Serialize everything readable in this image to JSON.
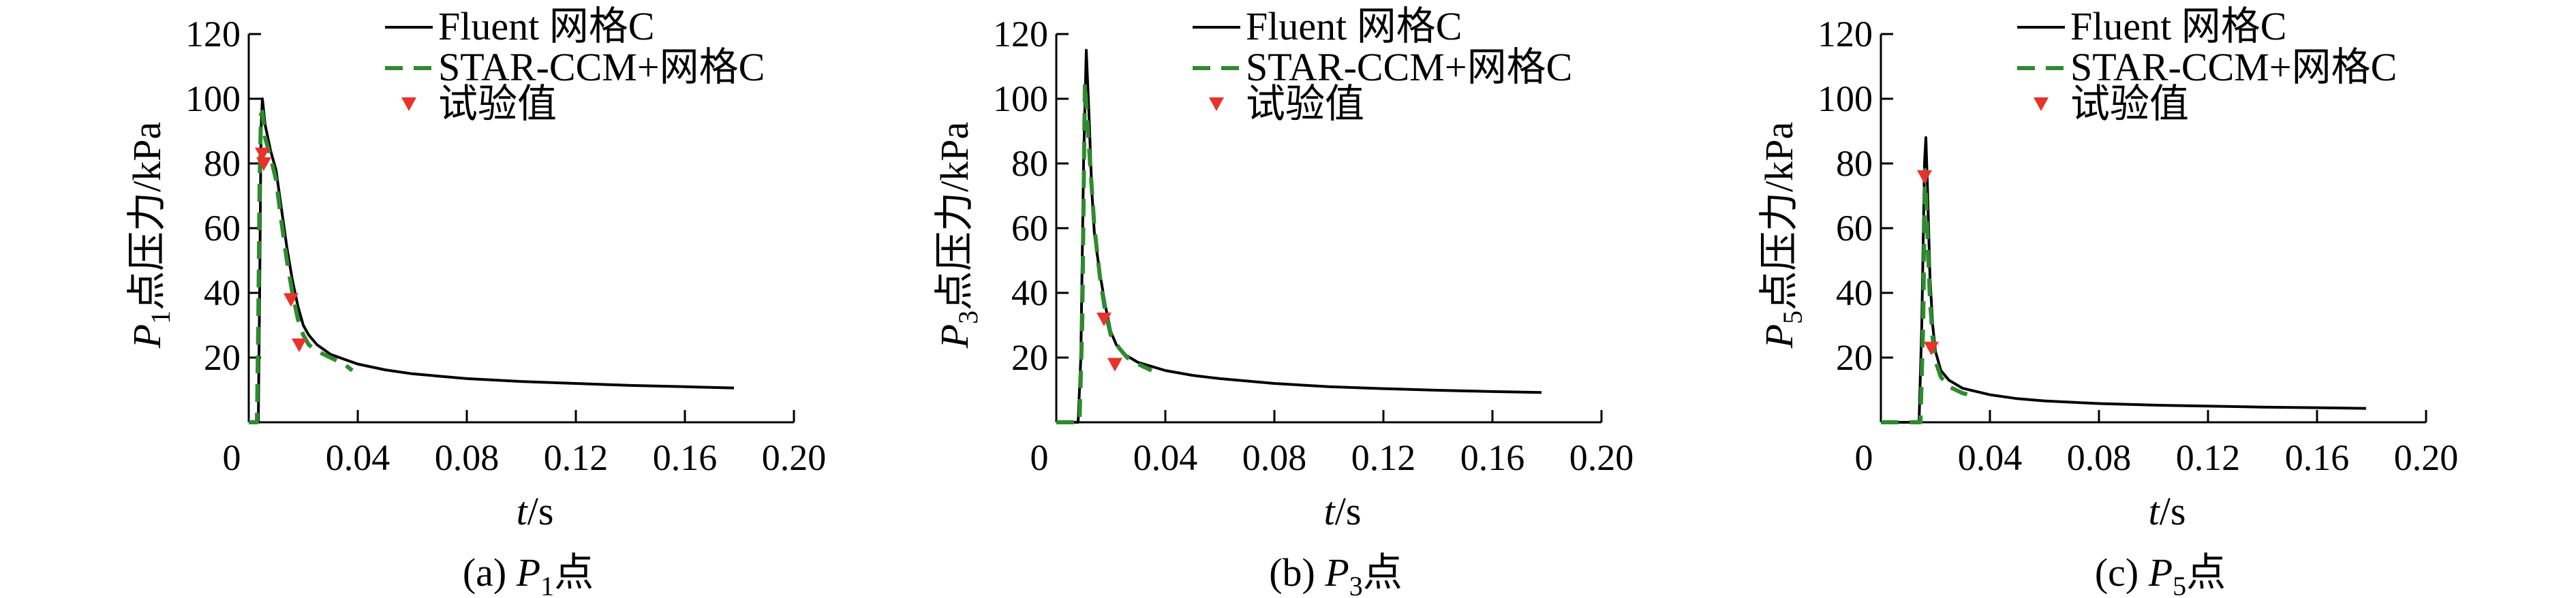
{
  "chart_data": [
    {
      "type": "line",
      "panel": "a",
      "caption_prefix": "(a) ",
      "caption_var": "P",
      "caption_sub": "1",
      "caption_suffix": "点",
      "ylabel_var": "P",
      "ylabel_sub": "1",
      "ylabel_text": "点压力/kPa",
      "xlabel_var": "t",
      "xlabel_text": "/s",
      "xlim": [
        0,
        0.2
      ],
      "ylim": [
        0,
        120
      ],
      "xticks": [
        0,
        0.04,
        0.08,
        0.12,
        0.16,
        0.2
      ],
      "xtick_labels": [
        "0",
        "0.04",
        "0.08",
        "0.12",
        "0.16",
        "0.20"
      ],
      "yticks": [
        20,
        40,
        60,
        80,
        100,
        120
      ],
      "ytick_labels": [
        "20",
        "40",
        "60",
        "80",
        "100",
        "120"
      ],
      "legend": [
        "Fluent 网格C",
        "STAR-CCM+网格C",
        "试验值"
      ],
      "series": [
        {
          "name": "Fluent 网格C",
          "style": "solid",
          "color": "#000000",
          "x": [
            0.0,
            0.002,
            0.0035,
            0.004,
            0.0045,
            0.005,
            0.006,
            0.008,
            0.01,
            0.012,
            0.014,
            0.016,
            0.018,
            0.02,
            0.022,
            0.025,
            0.03,
            0.04,
            0.05,
            0.06,
            0.08,
            0.1,
            0.12,
            0.14,
            0.16,
            0.178
          ],
          "y": [
            0,
            0,
            0,
            40,
            90,
            100,
            92,
            84,
            78,
            66,
            54,
            44,
            36,
            30,
            27,
            24,
            21,
            18,
            16.2,
            15,
            13.5,
            12.6,
            12,
            11.4,
            11,
            10.6
          ]
        },
        {
          "name": "STAR-CCM+网格C",
          "style": "dashed",
          "color": "#2e8b2e",
          "x": [
            0.0,
            0.0015,
            0.003,
            0.0035,
            0.004,
            0.0045,
            0.005,
            0.006,
            0.008,
            0.01,
            0.012,
            0.014,
            0.016,
            0.018,
            0.02,
            0.022,
            0.025,
            0.03,
            0.035,
            0.038
          ],
          "y": [
            0,
            0,
            0,
            30,
            75,
            95,
            96,
            88,
            82,
            75,
            62,
            50,
            40,
            32,
            27,
            24,
            22,
            20,
            18,
            16
          ]
        }
      ],
      "experiment": {
        "name": "试验值",
        "color": "#e8322b",
        "x": [
          0.005,
          0.0055,
          0.0155,
          0.0185
        ],
        "y": [
          83,
          80,
          38,
          24
        ]
      }
    },
    {
      "type": "line",
      "panel": "b",
      "caption_prefix": "(b) ",
      "caption_var": "P",
      "caption_sub": "3",
      "caption_suffix": "点",
      "ylabel_var": "P",
      "ylabel_sub": "3",
      "ylabel_text": "点压力/kPa",
      "xlabel_var": "t",
      "xlabel_text": "/s",
      "xlim": [
        0,
        0.2
      ],
      "ylim": [
        0,
        120
      ],
      "xticks": [
        0,
        0.04,
        0.08,
        0.12,
        0.16,
        0.2
      ],
      "xtick_labels": [
        "0",
        "0.04",
        "0.08",
        "0.12",
        "0.16",
        "0.20"
      ],
      "yticks": [
        20,
        40,
        60,
        80,
        100,
        120
      ],
      "ytick_labels": [
        "20",
        "40",
        "60",
        "80",
        "100",
        "120"
      ],
      "legend": [
        "Fluent 网格C",
        "STAR-CCM+网格C",
        "试验值"
      ],
      "series": [
        {
          "name": "Fluent 网格C",
          "style": "solid",
          "color": "#000000",
          "x": [
            0.0,
            0.006,
            0.008,
            0.009,
            0.01,
            0.011,
            0.012,
            0.013,
            0.014,
            0.016,
            0.018,
            0.02,
            0.022,
            0.025,
            0.03,
            0.04,
            0.05,
            0.06,
            0.08,
            0.1,
            0.12,
            0.14,
            0.16,
            0.178
          ],
          "y": [
            0,
            0,
            0,
            20,
            80,
            115,
            95,
            72,
            58,
            46,
            36,
            28,
            24,
            21,
            18.5,
            16,
            14.5,
            13.5,
            12,
            11,
            10.4,
            9.9,
            9.5,
            9.2
          ]
        },
        {
          "name": "STAR-CCM+网格C",
          "style": "dashed",
          "color": "#2e8b2e",
          "x": [
            0.0,
            0.007,
            0.0085,
            0.0095,
            0.0105,
            0.012,
            0.014,
            0.016,
            0.018,
            0.02,
            0.023,
            0.026,
            0.03,
            0.035
          ],
          "y": [
            0,
            0,
            0,
            30,
            105,
            85,
            60,
            45,
            34,
            27,
            23,
            20,
            18,
            16
          ]
        }
      ],
      "experiment": {
        "name": "试验值",
        "color": "#e8322b",
        "x": [
          0.0175,
          0.0215
        ],
        "y": [
          32,
          18
        ]
      }
    },
    {
      "type": "line",
      "panel": "c",
      "caption_prefix": "(c) ",
      "caption_var": "P",
      "caption_sub": "5",
      "caption_suffix": "点",
      "ylabel_var": "P",
      "ylabel_sub": "5",
      "ylabel_text": "点压力/kPa",
      "xlabel_var": "t",
      "xlabel_text": "/s",
      "xlim": [
        0,
        0.2
      ],
      "ylim": [
        0,
        120
      ],
      "xticks": [
        0,
        0.04,
        0.08,
        0.12,
        0.16,
        0.2
      ],
      "xtick_labels": [
        "0",
        "0.04",
        "0.08",
        "0.12",
        "0.16",
        "0.20"
      ],
      "yticks": [
        20,
        40,
        60,
        80,
        100,
        120
      ],
      "ytick_labels": [
        "20",
        "40",
        "60",
        "80",
        "100",
        "120"
      ],
      "legend": [
        "Fluent 网格C",
        "STAR-CCM+网格C",
        "试验值"
      ],
      "series": [
        {
          "name": "Fluent 网格C",
          "style": "solid",
          "color": "#000000",
          "x": [
            0.0,
            0.012,
            0.014,
            0.015,
            0.016,
            0.0165,
            0.017,
            0.018,
            0.019,
            0.02,
            0.022,
            0.025,
            0.03,
            0.04,
            0.05,
            0.06,
            0.08,
            0.1,
            0.12,
            0.14,
            0.16,
            0.178
          ],
          "y": [
            0,
            0,
            0,
            30,
            80,
            88,
            75,
            45,
            30,
            22,
            16,
            13,
            10.5,
            8.5,
            7.3,
            6.6,
            5.8,
            5.3,
            5,
            4.7,
            4.5,
            4.3
          ]
        },
        {
          "name": "STAR-CCM+网格C",
          "style": "dashed",
          "color": "#2e8b2e",
          "x": [
            0.0,
            0.013,
            0.0145,
            0.0155,
            0.0162,
            0.017,
            0.018,
            0.019,
            0.02,
            0.022,
            0.025,
            0.03,
            0.035
          ],
          "y": [
            0,
            0,
            0,
            30,
            78,
            60,
            38,
            26,
            19,
            14,
            11,
            9,
            8
          ]
        }
      ],
      "experiment": {
        "name": "试验值",
        "color": "#e8322b",
        "x": [
          0.016,
          0.0185
        ],
        "y": [
          76,
          23
        ]
      }
    }
  ]
}
